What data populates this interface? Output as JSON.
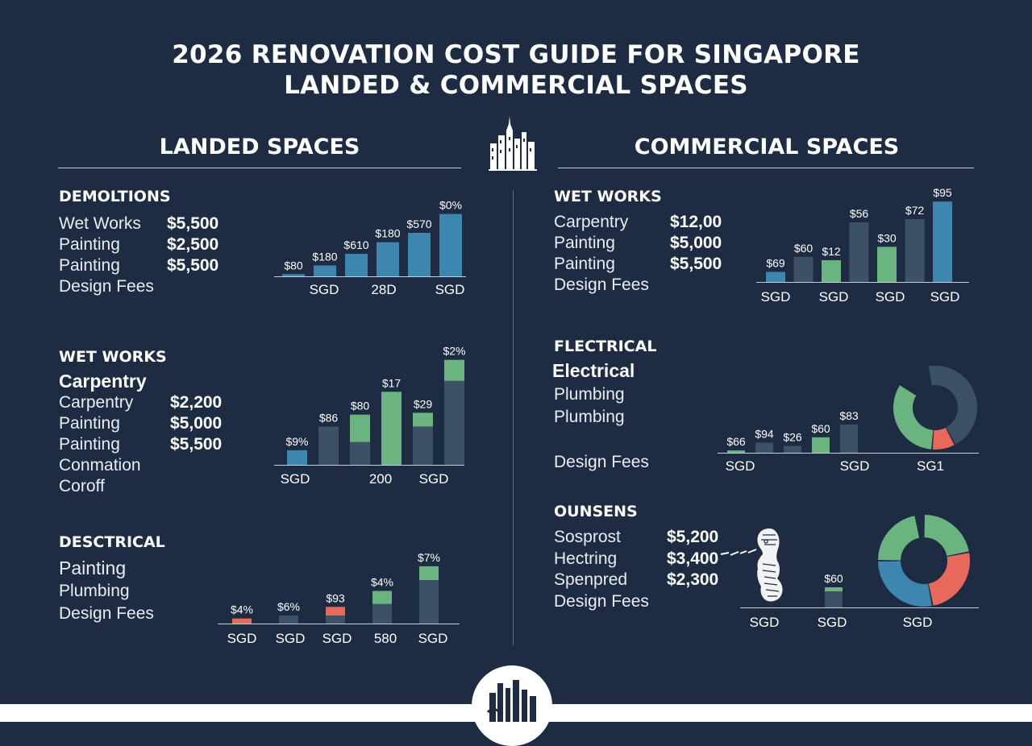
{
  "title": {
    "line1": "2026 RENOVATION COST GUIDE FOR SINGAPORE",
    "line2": "LANDED & COMMERCIAL SPACES"
  },
  "icons": {
    "skyline": "city-skyline-icon",
    "merlion": "merlion-icon",
    "footer": "skyline-badge-icon"
  },
  "colors": {
    "background": "#1d2c42",
    "blue": "#3d86b0",
    "slate": "#3c5068",
    "green": "#6ab47f",
    "red": "#e8685a"
  },
  "landed": {
    "heading": "LANDED SPACES",
    "block1": {
      "category": "DEMOLTIONS",
      "items": [
        {
          "label": "Wet Works",
          "value": "$5,500"
        },
        {
          "label": "Painting",
          "value": "$2,500"
        },
        {
          "label": "Painting",
          "value": "$5,500"
        },
        {
          "label": "Design Fees",
          "value": ""
        }
      ]
    },
    "block2": {
      "category": "WET WORKS",
      "subheading": "Carpentry",
      "items": [
        {
          "label": "Carpentry",
          "value": "$2,200"
        },
        {
          "label": "Painting",
          "value": "$5,000"
        },
        {
          "label": "Painting",
          "value": "$5,500"
        },
        {
          "label": "Conmation",
          "value": ""
        },
        {
          "label": "Coroff",
          "value": ""
        }
      ]
    },
    "block3": {
      "category": "DESCTRICAL",
      "subheading": "Painting",
      "items": [
        {
          "label": "Plumbing",
          "value": ""
        },
        {
          "label": "Design Fees",
          "value": ""
        }
      ]
    }
  },
  "commercial": {
    "heading": "COMMERCIAL SPACES",
    "block1": {
      "category": "WET WORKS",
      "items": [
        {
          "label": "Carpentry",
          "value": "$12,00"
        },
        {
          "label": "Painting",
          "value": "$5,000"
        },
        {
          "label": "Painting",
          "value": "$5,500"
        },
        {
          "label": "Design Fees",
          "value": ""
        }
      ]
    },
    "block2": {
      "category": "FLECTRICAL",
      "subheading": "Electrical",
      "items": [
        {
          "label": "Plumbing",
          "value": ""
        },
        {
          "label": "Plumbing",
          "value": ""
        },
        {
          "label": "Design Fees",
          "value": ""
        }
      ]
    },
    "block3": {
      "category": "OUNSENS",
      "items": [
        {
          "label": "Sosprost",
          "value": "$5,200"
        },
        {
          "label": "Hectring",
          "value": "$3,400"
        },
        {
          "label": "Spenpred",
          "value": "$2,300"
        },
        {
          "label": "Design Fees",
          "value": ""
        }
      ]
    }
  },
  "chart_data": [
    {
      "id": "landed-1",
      "type": "bar",
      "ylim": [
        0,
        100
      ],
      "tick_labels": [
        "SGD",
        "28D",
        "SGD"
      ],
      "bars": [
        {
          "label": "$80",
          "value": 3,
          "color": "blue"
        },
        {
          "label": "$180",
          "value": 15,
          "color": "blue"
        },
        {
          "label": "$610",
          "value": 31,
          "color": "blue"
        },
        {
          "label": "$180",
          "value": 47,
          "color": "blue"
        },
        {
          "label": "$570",
          "value": 60,
          "color": "blue"
        },
        {
          "label": "$0%",
          "value": 86,
          "color": "blue"
        }
      ]
    },
    {
      "id": "landed-2",
      "type": "bar",
      "stacked": true,
      "ylim": [
        0,
        120
      ],
      "tick_labels": [
        "SGD",
        "200",
        "SGD"
      ],
      "bars": [
        {
          "label": "$9%",
          "segments": [
            {
              "value": 16,
              "color": "blue"
            }
          ]
        },
        {
          "label": "$86",
          "segments": [
            {
              "value": 42,
              "color": "slate"
            }
          ]
        },
        {
          "label": "$80",
          "segments": [
            {
              "value": 25,
              "color": "slate"
            },
            {
              "value": 30,
              "color": "green"
            }
          ]
        },
        {
          "label": "$17",
          "segments": [
            {
              "value": 80,
              "color": "green"
            }
          ]
        },
        {
          "label": "$29",
          "segments": [
            {
              "value": 42,
              "color": "slate"
            },
            {
              "value": 15,
              "color": "green"
            }
          ]
        },
        {
          "label": "$2%",
          "segments": [
            {
              "value": 92,
              "color": "slate"
            },
            {
              "value": 23,
              "color": "green"
            }
          ]
        }
      ]
    },
    {
      "id": "landed-3",
      "type": "bar",
      "stacked": true,
      "ylim": [
        0,
        100
      ],
      "tick_labels": [
        "SGD",
        "SGD",
        "SGD",
        "580",
        "SGD"
      ],
      "bars": [
        {
          "label": "$4%",
          "segments": [
            {
              "value": 7,
              "color": "red"
            }
          ]
        },
        {
          "label": "$6%",
          "segments": [
            {
              "value": 11,
              "color": "slate"
            }
          ]
        },
        {
          "label": "$93",
          "segments": [
            {
              "value": 11,
              "color": "slate"
            },
            {
              "value": 12,
              "color": "red"
            }
          ]
        },
        {
          "label": "$4%",
          "segments": [
            {
              "value": 27,
              "color": "slate"
            },
            {
              "value": 18,
              "color": "green"
            }
          ]
        },
        {
          "label": "$7%",
          "segments": [
            {
              "value": 60,
              "color": "slate"
            },
            {
              "value": 19,
              "color": "green"
            }
          ]
        }
      ]
    },
    {
      "id": "commercial-1",
      "type": "bar",
      "ylim": [
        0,
        100
      ],
      "tick_labels": [
        "SGD",
        "SGD",
        "SGD",
        "SGD"
      ],
      "bars": [
        {
          "label": "$69",
          "value": 12,
          "color": "blue"
        },
        {
          "label": "$60",
          "value": 30,
          "color": "slate"
        },
        {
          "label": "$12",
          "value": 26,
          "color": "green"
        },
        {
          "label": "$56",
          "value": 71,
          "color": "slate"
        },
        {
          "label": "$30",
          "value": 42,
          "color": "green"
        },
        {
          "label": "$72",
          "value": 75,
          "color": "slate"
        },
        {
          "label": "$95",
          "value": 96,
          "color": "blue"
        }
      ]
    },
    {
      "id": "commercial-2",
      "type": "bar",
      "ylim": [
        0,
        100
      ],
      "tick_labels": [
        "SGD",
        "SGD",
        "SG1"
      ],
      "bars": [
        {
          "label": "$66",
          "value": 6,
          "color": "green"
        },
        {
          "label": "$94",
          "value": 26,
          "color": "slate"
        },
        {
          "label": "$26",
          "value": 18,
          "color": "slate"
        },
        {
          "label": "$60",
          "value": 40,
          "color": "green"
        },
        {
          "label": "$83",
          "value": 73,
          "color": "slate"
        }
      ]
    },
    {
      "id": "commercial-2-donut",
      "type": "pie",
      "slices": [
        {
          "value": 45,
          "color": "slate"
        },
        {
          "value": 9,
          "color": "red"
        },
        {
          "value": 33,
          "color": "green"
        },
        {
          "value": 13,
          "color": "background"
        }
      ]
    },
    {
      "id": "commercial-3",
      "type": "bar",
      "ylim": [
        0,
        100
      ],
      "tick_labels": [
        "SGD",
        "SGD",
        "SGD"
      ],
      "bars": [
        {
          "label": "$60",
          "segments": [
            {
              "value": 40,
              "color": "slate"
            },
            {
              "value": 10,
              "color": "green"
            }
          ]
        }
      ]
    },
    {
      "id": "commercial-3-donut",
      "type": "pie",
      "slices": [
        {
          "value": 22,
          "color": "green"
        },
        {
          "value": 25,
          "color": "red"
        },
        {
          "value": 28,
          "color": "blue"
        },
        {
          "value": 22,
          "color": "green"
        },
        {
          "value": 3,
          "color": "background"
        }
      ]
    }
  ]
}
